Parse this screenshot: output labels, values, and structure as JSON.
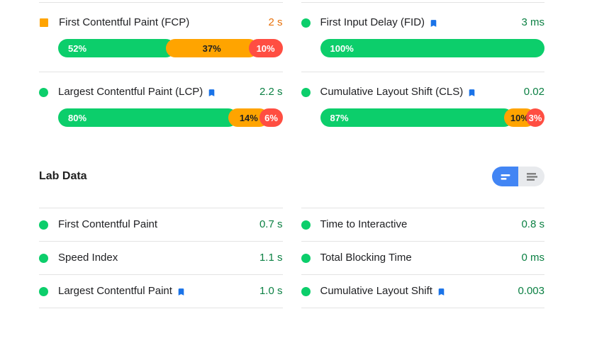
{
  "colors": {
    "fast": "#0CCE6B",
    "average": "#FFA400",
    "slow": "#FF4E42",
    "good_text": "#0B8043",
    "average_text": "#E8710A",
    "label_text": "#202124",
    "divider": "#E3E3E3",
    "bookmark_blue": "#1A73E8",
    "toggle_active": "#4285F4",
    "toggle_inactive": "#E8EAED",
    "toggle_inactive_icon": "#757575"
  },
  "field_data": {
    "metrics": [
      {
        "label": "First Contentful Paint (FCP)",
        "core_web_vital": false,
        "rating_icon": "orange-square",
        "value": "2 s",
        "value_color": "#E8710A",
        "distribution": [
          {
            "rating": "fast",
            "pct": 52,
            "label": "52%"
          },
          {
            "rating": "average",
            "pct": 37,
            "label": "37%"
          },
          {
            "rating": "slow",
            "pct": 10,
            "label": "10%"
          }
        ]
      },
      {
        "label": "First Input Delay (FID)",
        "core_web_vital": true,
        "rating_icon": "green-circle",
        "value": "3 ms",
        "value_color": "#0B8043",
        "distribution": [
          {
            "rating": "fast",
            "pct": 100,
            "label": "100%"
          }
        ]
      },
      {
        "label": "Largest Contentful Paint (LCP)",
        "core_web_vital": true,
        "rating_icon": "green-circle",
        "value": "2.2 s",
        "value_color": "#0B8043",
        "distribution": [
          {
            "rating": "fast",
            "pct": 80,
            "label": "80%"
          },
          {
            "rating": "average",
            "pct": 14,
            "label": "14%"
          },
          {
            "rating": "slow",
            "pct": 6,
            "label": "6%"
          }
        ]
      },
      {
        "label": "Cumulative Layout Shift (CLS)",
        "core_web_vital": true,
        "rating_icon": "green-circle",
        "value": "0.02",
        "value_color": "#0B8043",
        "distribution": [
          {
            "rating": "fast",
            "pct": 87,
            "label": "87%"
          },
          {
            "rating": "average",
            "pct": 10,
            "label": "10%"
          },
          {
            "rating": "slow",
            "pct": 3,
            "label": "3%"
          }
        ]
      }
    ]
  },
  "lab_data": {
    "title": "Lab Data",
    "view_toggle": {
      "active_option": "metrics-bar-view",
      "options": [
        "metrics-bar-view",
        "audits-list-view"
      ]
    },
    "metrics": [
      {
        "label": "First Contentful Paint",
        "core_web_vital": false,
        "value": "0.7 s",
        "value_color": "#0B8043"
      },
      {
        "label": "Time to Interactive",
        "core_web_vital": false,
        "value": "0.8 s",
        "value_color": "#0B8043"
      },
      {
        "label": "Speed Index",
        "core_web_vital": false,
        "value": "1.1 s",
        "value_color": "#0B8043"
      },
      {
        "label": "Total Blocking Time",
        "core_web_vital": false,
        "value": "0 ms",
        "value_color": "#0B8043"
      },
      {
        "label": "Largest Contentful Paint",
        "core_web_vital": true,
        "value": "1.0 s",
        "value_color": "#0B8043"
      },
      {
        "label": "Cumulative Layout Shift",
        "core_web_vital": true,
        "value": "0.003",
        "value_color": "#0B8043"
      }
    ]
  }
}
